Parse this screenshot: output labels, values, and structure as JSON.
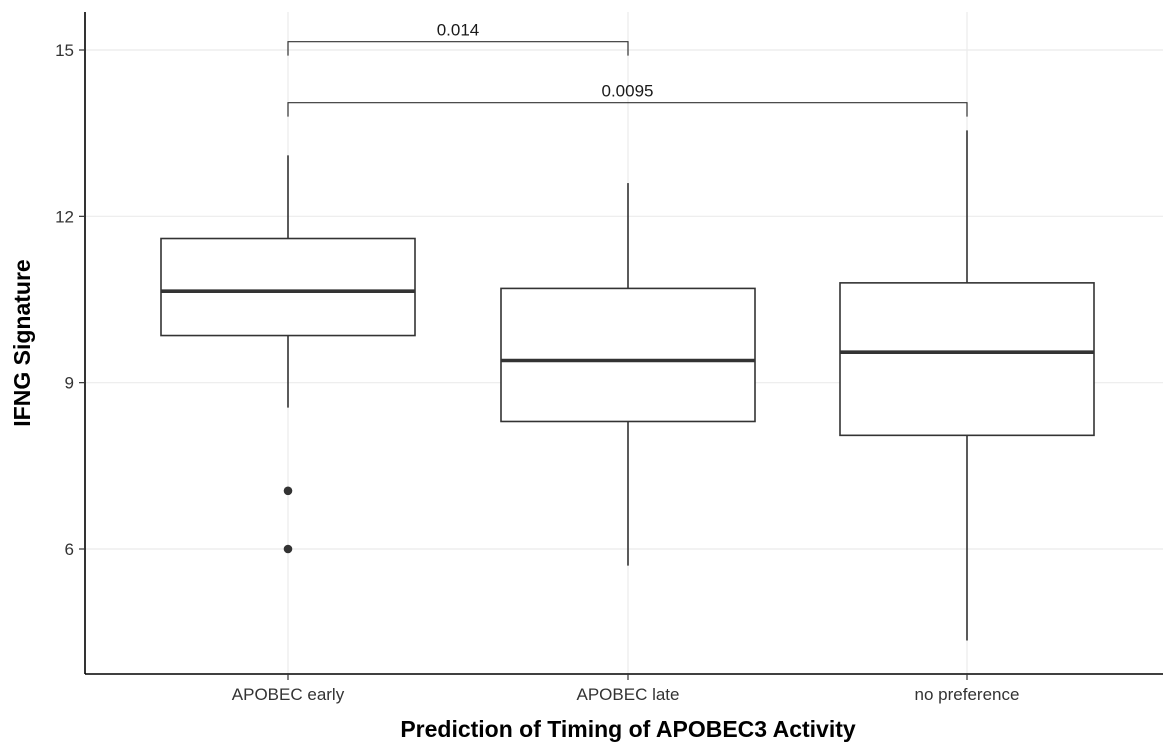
{
  "chart_data": {
    "type": "boxplot",
    "xlabel": "Prediction of Timing of APOBEC3 Activity",
    "ylabel": "IFNG Signature",
    "ylim": [
      4.3,
      15.7
    ],
    "yticks": [
      6,
      9,
      12,
      15
    ],
    "grid": true,
    "categories": [
      "APOBEC early",
      "APOBEC late",
      "no preference"
    ],
    "boxes": [
      {
        "category": "APOBEC early",
        "whisker_low": 8.55,
        "q1": 9.85,
        "median": 10.65,
        "q3": 11.6,
        "whisker_high": 13.1,
        "outliers": [
          7.05,
          6.0
        ]
      },
      {
        "category": "APOBEC late",
        "whisker_low": 5.7,
        "q1": 8.3,
        "median": 9.4,
        "q3": 10.7,
        "whisker_high": 12.6,
        "outliers": []
      },
      {
        "category": "no preference",
        "whisker_low": 4.35,
        "q1": 8.05,
        "median": 9.55,
        "q3": 10.8,
        "whisker_high": 13.55,
        "outliers": []
      }
    ],
    "comparisons": [
      {
        "from": "APOBEC early",
        "to": "APOBEC late",
        "y": 15.15,
        "label": "0.014"
      },
      {
        "from": "APOBEC early",
        "to": "no preference",
        "y": 14.05,
        "label": "0.0095"
      }
    ]
  }
}
